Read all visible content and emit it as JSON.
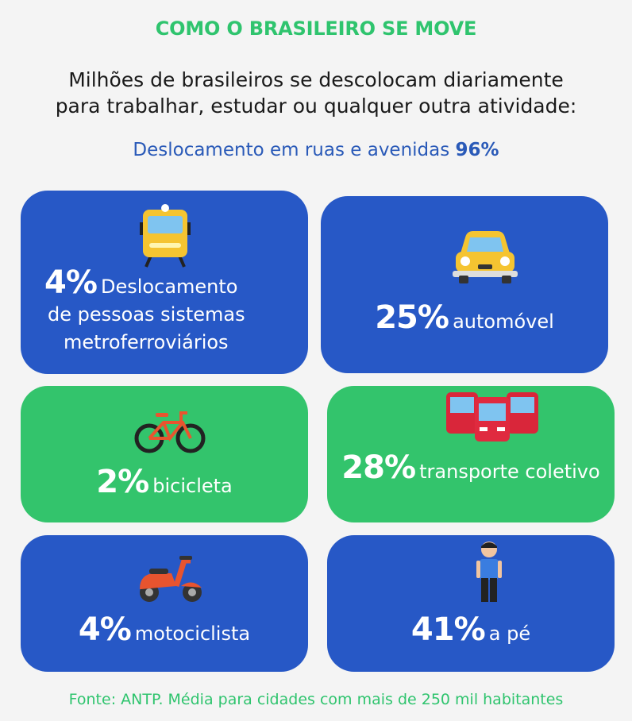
{
  "header": {
    "title": "COMO O BRASILEIRO SE MOVE",
    "subtitle_line1": "Milhões de brasileiros se descolocam diariamente",
    "subtitle_line2": "para trabalhar, estudar ou qualquer outra atividade:",
    "streets_text": "Deslocamento em ruas e avenidas",
    "streets_pct": "96%"
  },
  "cards": [
    {
      "pct": "4%",
      "label_line1": "Deslocamento",
      "label_line2": "de pessoas sistemas",
      "label_line3": "metroferroviários",
      "icon": "train-icon",
      "color": "#2758c6"
    },
    {
      "pct": "25%",
      "label": "automóvel",
      "icon": "car-icon",
      "color": "#2758c6"
    },
    {
      "pct": "2%",
      "label": "bicicleta",
      "icon": "bicycle-icon",
      "color": "#33c46c"
    },
    {
      "pct": "28%",
      "label": "transporte coletivo",
      "icon": "bus-icon",
      "color": "#33c46c"
    },
    {
      "pct": "4%",
      "label": "motociclista",
      "icon": "scooter-icon",
      "color": "#2758c6"
    },
    {
      "pct": "41%",
      "label": "a pé",
      "icon": "pedestrian-icon",
      "color": "#2758c6"
    }
  ],
  "footer": {
    "source": "Fonte: ANTP. Média para cidades com mais de 250 mil habitantes"
  }
}
